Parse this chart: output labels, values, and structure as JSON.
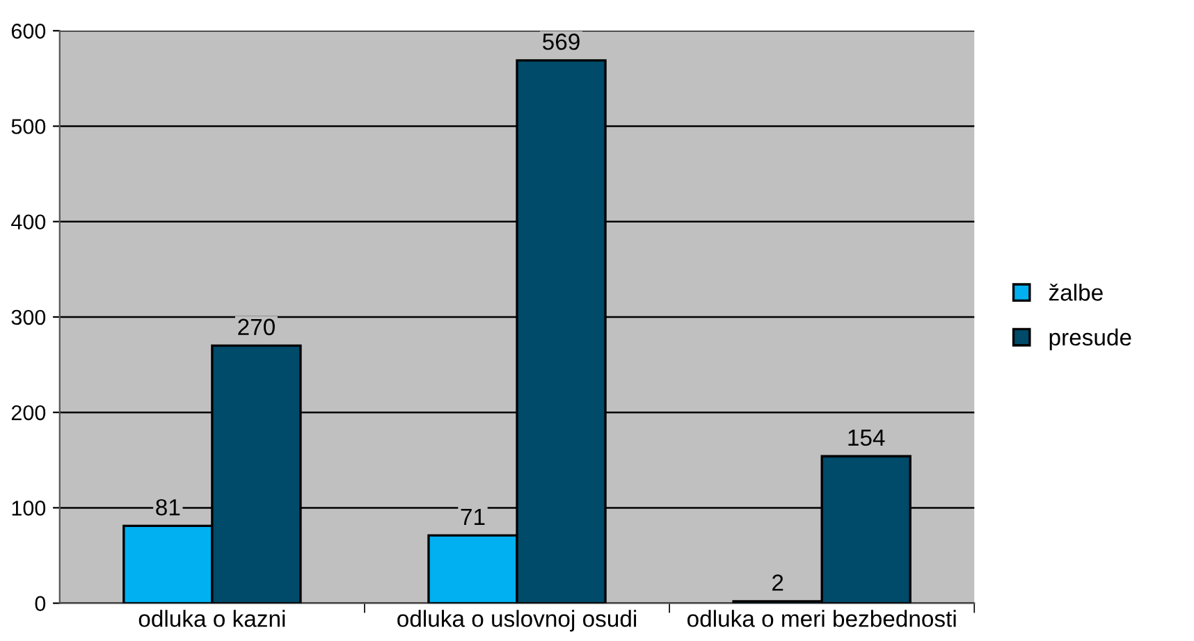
{
  "chart_data": {
    "type": "bar",
    "categories": [
      "odluka o kazni",
      "odluka o uslovnoj osudi",
      "odluka o meri bezbednosti"
    ],
    "series": [
      {
        "name": "žalbe",
        "color": "#00b0f0",
        "values": [
          81,
          71,
          2
        ]
      },
      {
        "name": "presude",
        "color": "#004a6a",
        "values": [
          270,
          569,
          154
        ]
      }
    ],
    "ylim": [
      0,
      600
    ],
    "yticks": [
      0,
      100,
      200,
      300,
      400,
      500,
      600
    ],
    "grid": "y",
    "legend": "right",
    "data_labels": true
  }
}
